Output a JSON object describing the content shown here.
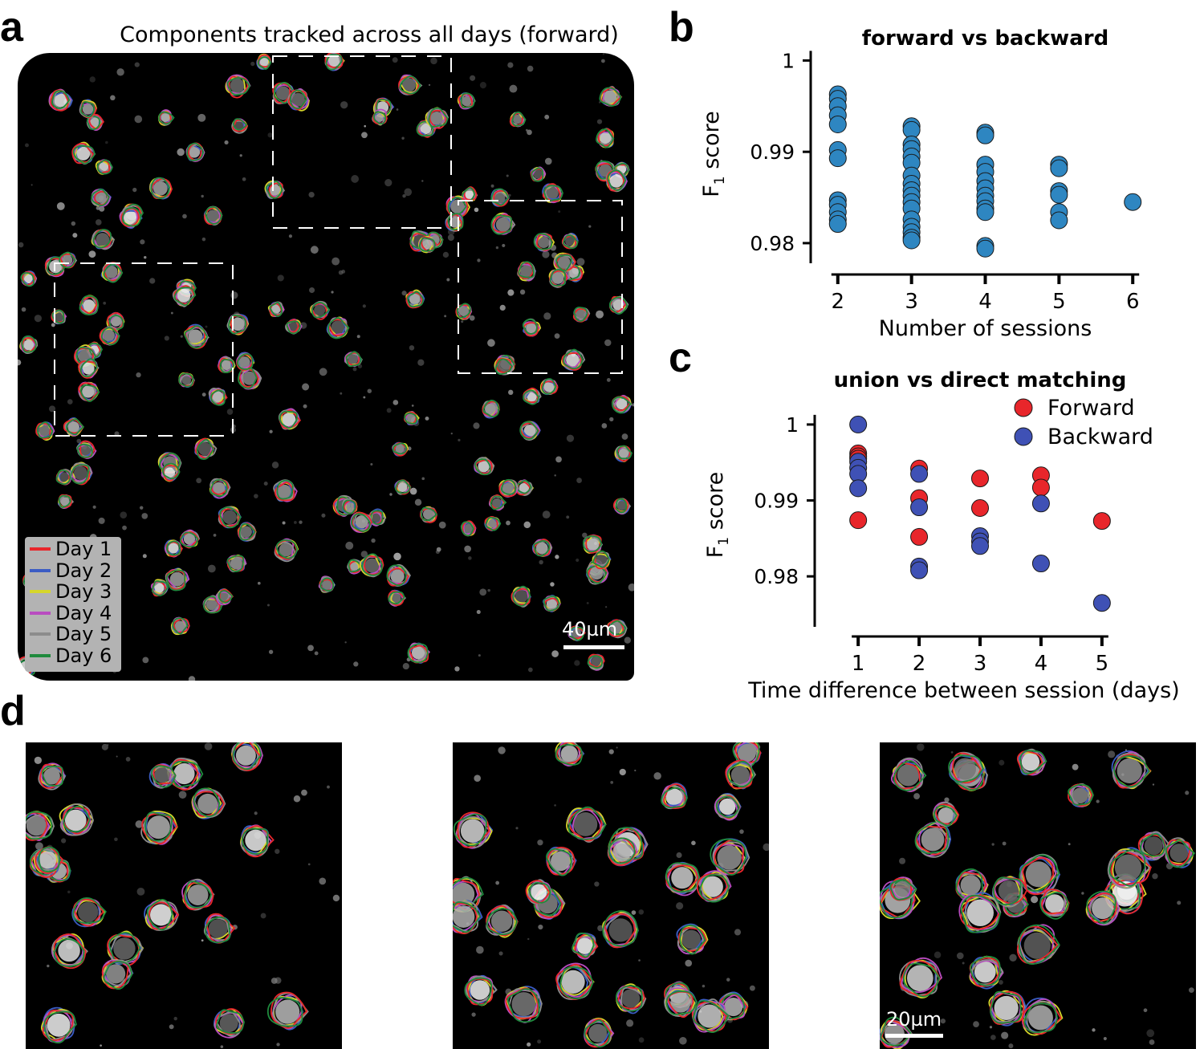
{
  "panel_letters": {
    "a": "a",
    "b": "b",
    "c": "c",
    "d": "d"
  },
  "panel_a": {
    "title": "Components tracked across all days (forward)",
    "legend": [
      {
        "label": "Day 1",
        "color": "#e8262b"
      },
      {
        "label": "Day 2",
        "color": "#3b5cc4"
      },
      {
        "label": "Day 3",
        "color": "#d6d62a"
      },
      {
        "label": "Day 4",
        "color": "#b94cc0"
      },
      {
        "label": "Day 5",
        "color": "#8c8c8c"
      },
      {
        "label": "Day 6",
        "color": "#1f8a3d"
      }
    ],
    "scale_bar": "40µm"
  },
  "panel_d": {
    "scale_bar": "20µm"
  },
  "chart_data": [
    {
      "id": "b",
      "type": "scatter",
      "title": "forward vs backward",
      "xlabel": "Number of sessions",
      "ylabel": "F1 score",
      "ylabel_main": "F",
      "ylabel_sub": "1",
      "ylabel_rest": " score",
      "xticks": [
        2,
        3,
        4,
        5,
        6
      ],
      "yticks": [
        0.98,
        0.99,
        1
      ],
      "ytick_labels": [
        "0.98",
        "0.99",
        "1"
      ],
      "xlim": [
        1.85,
        6.15
      ],
      "ylim": [
        0.9785,
        1.001
      ],
      "series": [
        {
          "color": "#2e86c1",
          "points": [
            [
              2,
              0.9963
            ],
            [
              2,
              0.9958
            ],
            [
              2,
              0.995
            ],
            [
              2,
              0.994
            ],
            [
              2,
              0.993
            ],
            [
              2,
              0.9902
            ],
            [
              2,
              0.9893
            ],
            [
              2,
              0.9847
            ],
            [
              2,
              0.9842
            ],
            [
              2,
              0.9834
            ],
            [
              2,
              0.9826
            ],
            [
              2,
              0.9821
            ],
            [
              3,
              0.9928
            ],
            [
              3,
              0.9924
            ],
            [
              3,
              0.9908
            ],
            [
              3,
              0.9903
            ],
            [
              3,
              0.9895
            ],
            [
              3,
              0.9888
            ],
            [
              3,
              0.9874
            ],
            [
              3,
              0.9865
            ],
            [
              3,
              0.9858
            ],
            [
              3,
              0.9852
            ],
            [
              3,
              0.9845
            ],
            [
              3,
              0.9838
            ],
            [
              3,
              0.9826
            ],
            [
              3,
              0.9818
            ],
            [
              3,
              0.9812
            ],
            [
              3,
              0.9806
            ],
            [
              3,
              0.9803
            ],
            [
              4,
              0.9921
            ],
            [
              4,
              0.9918
            ],
            [
              4,
              0.9886
            ],
            [
              4,
              0.9878
            ],
            [
              4,
              0.9868
            ],
            [
              4,
              0.986
            ],
            [
              4,
              0.9852
            ],
            [
              4,
              0.9846
            ],
            [
              4,
              0.9838
            ],
            [
              4,
              0.9834
            ],
            [
              4,
              0.9797
            ],
            [
              4,
              0.9794
            ],
            [
              5,
              0.9886
            ],
            [
              5,
              0.9882
            ],
            [
              5,
              0.9857
            ],
            [
              5,
              0.9853
            ],
            [
              5,
              0.9834
            ],
            [
              5,
              0.9825
            ],
            [
              6,
              0.9845
            ]
          ]
        }
      ]
    },
    {
      "id": "c",
      "type": "scatter",
      "title": "union vs direct matching",
      "xlabel": "Time difference between session (days)",
      "ylabel": "F1 score",
      "ylabel_main": "F",
      "ylabel_sub": "1",
      "ylabel_rest": " score",
      "xticks": [
        1,
        2,
        3,
        4,
        5
      ],
      "yticks": [
        0.98,
        0.99,
        1
      ],
      "ytick_labels": [
        "0.98",
        "0.99",
        "1"
      ],
      "xlim": [
        0.55,
        5.45
      ],
      "ylim": [
        0.9742,
        1.002
      ],
      "series": [
        {
          "name": "Forward",
          "color": "#e8262b",
          "points": [
            [
              1,
              0.9962
            ],
            [
              1,
              0.9958
            ],
            [
              1,
              0.9955
            ],
            [
              1,
              0.9874
            ],
            [
              2,
              0.9942
            ],
            [
              2,
              0.9903
            ],
            [
              2,
              0.9852
            ],
            [
              3,
              0.9929
            ],
            [
              3,
              0.989
            ],
            [
              4,
              0.9933
            ],
            [
              4,
              0.9917
            ],
            [
              5,
              0.9873
            ]
          ]
        },
        {
          "name": "Backward",
          "color": "#3f51b5",
          "points": [
            [
              1,
              1.0
            ],
            [
              1,
              0.9951
            ],
            [
              1,
              0.9943
            ],
            [
              1,
              0.9935
            ],
            [
              1,
              0.9916
            ],
            [
              2,
              0.9935
            ],
            [
              2,
              0.9891
            ],
            [
              2,
              0.9813
            ],
            [
              2,
              0.9808
            ],
            [
              3,
              0.9853
            ],
            [
              3,
              0.9846
            ],
            [
              3,
              0.984
            ],
            [
              4,
              0.9896
            ],
            [
              4,
              0.9817
            ],
            [
              5,
              0.9765
            ]
          ]
        }
      ]
    }
  ]
}
